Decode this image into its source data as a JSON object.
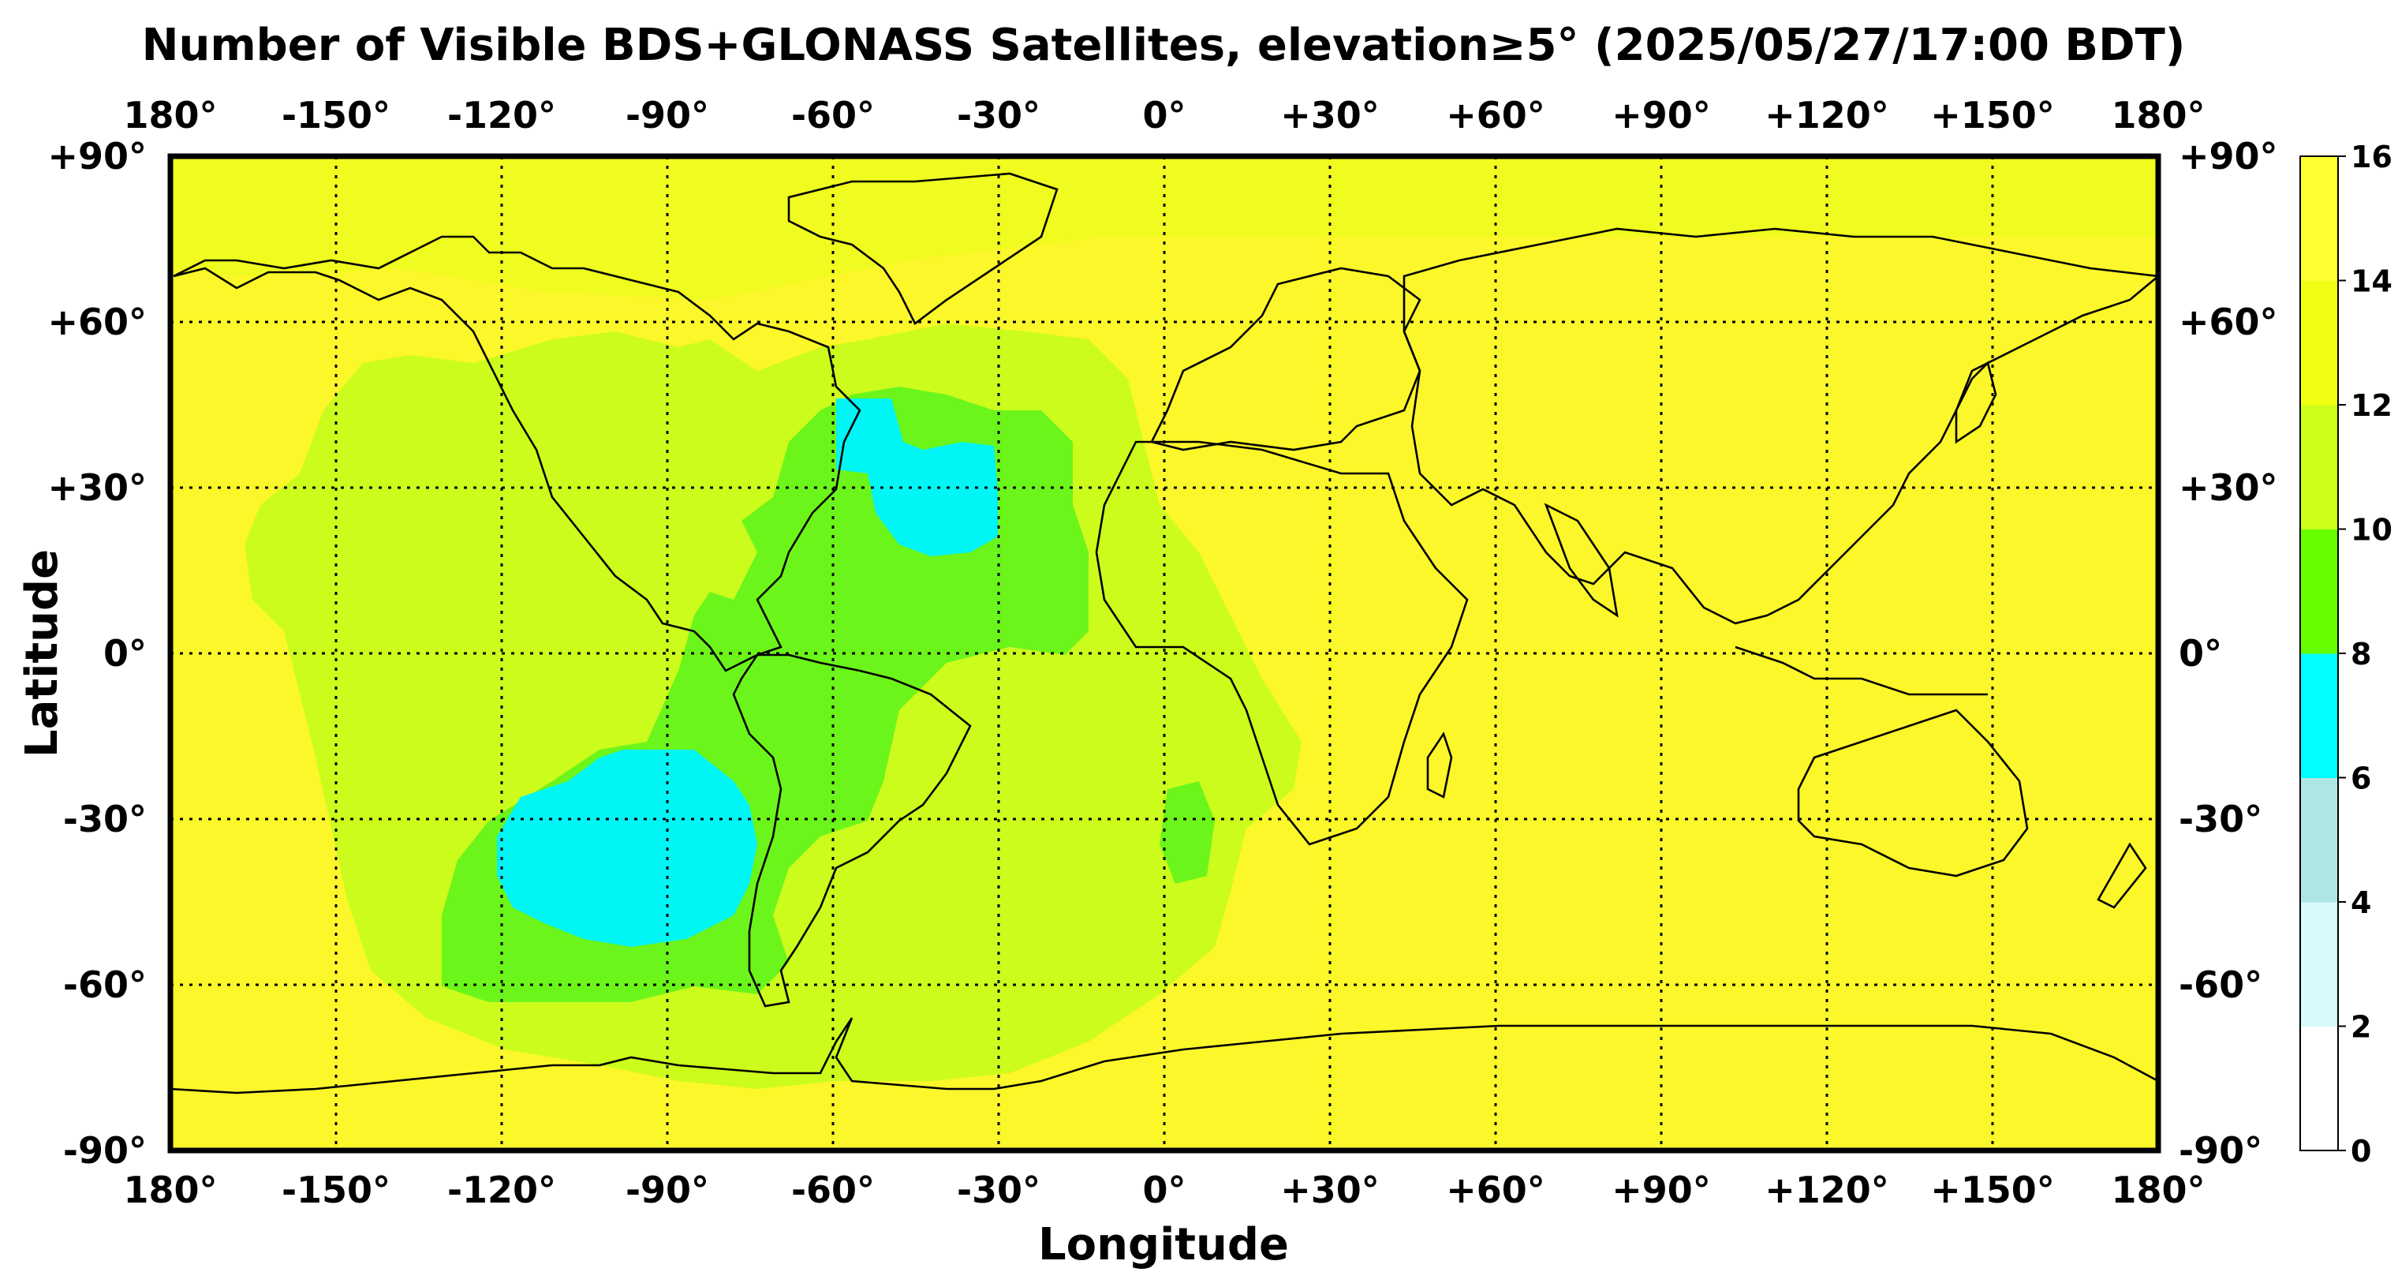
{
  "title": "Number of Visible BDS+GLONASS Satellites, elevation≥5° (2025/05/27/17:00 BDT)",
  "xlabel": "Longitude",
  "ylabel": "Latitude",
  "lon_ticks": [
    "180°",
    "-150°",
    "-120°",
    "-90°",
    "-60°",
    "-30°",
    "0°",
    "+30°",
    "+60°",
    "+90°",
    "+120°",
    "+150°",
    "180°"
  ],
  "lat_ticks": [
    "+90°",
    "+60°",
    "+30°",
    "0°",
    "-30°",
    "-60°",
    "-90°"
  ],
  "colorbar": {
    "ticks": [
      "0",
      "2",
      "4",
      "6",
      "8",
      "10",
      "12",
      "14",
      "16"
    ],
    "colors": [
      "#ffffff",
      "#d6fafa",
      "#aee6e6",
      "#00ffff",
      "#66ff00",
      "#ccff19",
      "#f2ff14",
      "#ffff33"
    ]
  },
  "map": {
    "background_level": "14-16",
    "background_color": "#fcf72a",
    "regions": [
      {
        "level": "12-14",
        "color": "#f0fb1f",
        "lon": [
          -180,
          180
        ],
        "lat": [
          64,
          90
        ],
        "note": "Arctic/Greenland"
      },
      {
        "level": "10-12",
        "color": "#ccfc1c",
        "lon": [
          -165,
          30
        ],
        "lat": [
          -72,
          52
        ]
      },
      {
        "level": "8-10",
        "color": "#6cf51a",
        "lon": [
          -138,
          -2
        ],
        "lat": [
          -62,
          45
        ]
      },
      {
        "level": "6-8",
        "color": "#00f5f5",
        "lon": [
          -112,
          -74
        ],
        "lat": [
          -54,
          -16
        ]
      },
      {
        "level": "6-8",
        "color": "#00f5f5",
        "lon": [
          -60,
          -33
        ],
        "lat": [
          18,
          47
        ]
      }
    ]
  }
}
